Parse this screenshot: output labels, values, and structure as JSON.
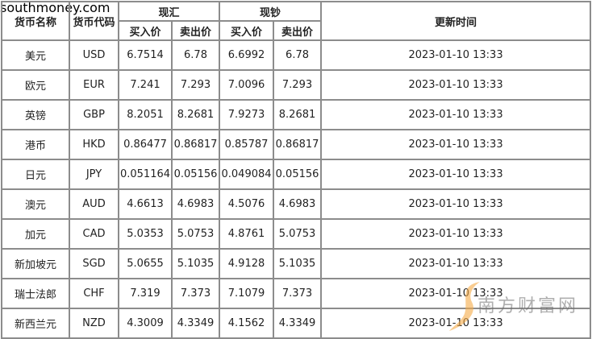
{
  "headers": {
    "name": "货币名称",
    "code": "货币代码",
    "spot_exchange": "现汇",
    "cash": "现钞",
    "buy": "买入价",
    "sell": "卖出价",
    "time": "更新时间"
  },
  "rows": [
    {
      "name": "美元",
      "code": "USD",
      "fx_buy": "6.7514",
      "fx_sell": "6.78",
      "cash_buy": "6.6992",
      "cash_sell": "6.78",
      "time": "2023-01-10  13:33"
    },
    {
      "name": "欧元",
      "code": "EUR",
      "fx_buy": "7.241",
      "fx_sell": "7.293",
      "cash_buy": "7.0096",
      "cash_sell": "7.293",
      "time": "2023-01-10  13:33"
    },
    {
      "name": "英镑",
      "code": "GBP",
      "fx_buy": "8.2051",
      "fx_sell": "8.2681",
      "cash_buy": "7.9273",
      "cash_sell": "8.2681",
      "time": "2023-01-10  13:33"
    },
    {
      "name": "港币",
      "code": "HKD",
      "fx_buy": "0.86477",
      "fx_sell": "0.86817",
      "cash_buy": "0.85787",
      "cash_sell": "0.86817",
      "time": "2023-01-10  13:33"
    },
    {
      "name": "日元",
      "code": "JPY",
      "fx_buy": "0.051164",
      "fx_sell": "0.05156",
      "cash_buy": "0.049084",
      "cash_sell": "0.05156",
      "time": "2023-01-10  13:33"
    },
    {
      "name": "澳元",
      "code": "AUD",
      "fx_buy": "4.6613",
      "fx_sell": "4.6983",
      "cash_buy": "4.5076",
      "cash_sell": "4.6983",
      "time": "2023-01-10  13:33"
    },
    {
      "name": "加元",
      "code": "CAD",
      "fx_buy": "5.0353",
      "fx_sell": "5.0753",
      "cash_buy": "4.8761",
      "cash_sell": "5.0753",
      "time": "2023-01-10  13:33"
    },
    {
      "name": "新加坡元",
      "code": "SGD",
      "fx_buy": "5.0655",
      "fx_sell": "5.1035",
      "cash_buy": "4.9128",
      "cash_sell": "5.1035",
      "time": "2023-01-10  13:33"
    },
    {
      "name": "瑞士法郎",
      "code": "CHF",
      "fx_buy": "7.319",
      "fx_sell": "7.373",
      "cash_buy": "7.1079",
      "cash_sell": "7.373",
      "time": "2023-01-10  13:33"
    },
    {
      "name": "新西兰元",
      "code": "NZD",
      "fx_buy": "4.3009",
      "fx_sell": "4.3349",
      "cash_buy": "4.1562",
      "cash_sell": "4.3349",
      "time": "2023-01-10  13:33"
    }
  ],
  "watermark": {
    "cn": "南方财富网",
    "en": "southmoney.com"
  }
}
